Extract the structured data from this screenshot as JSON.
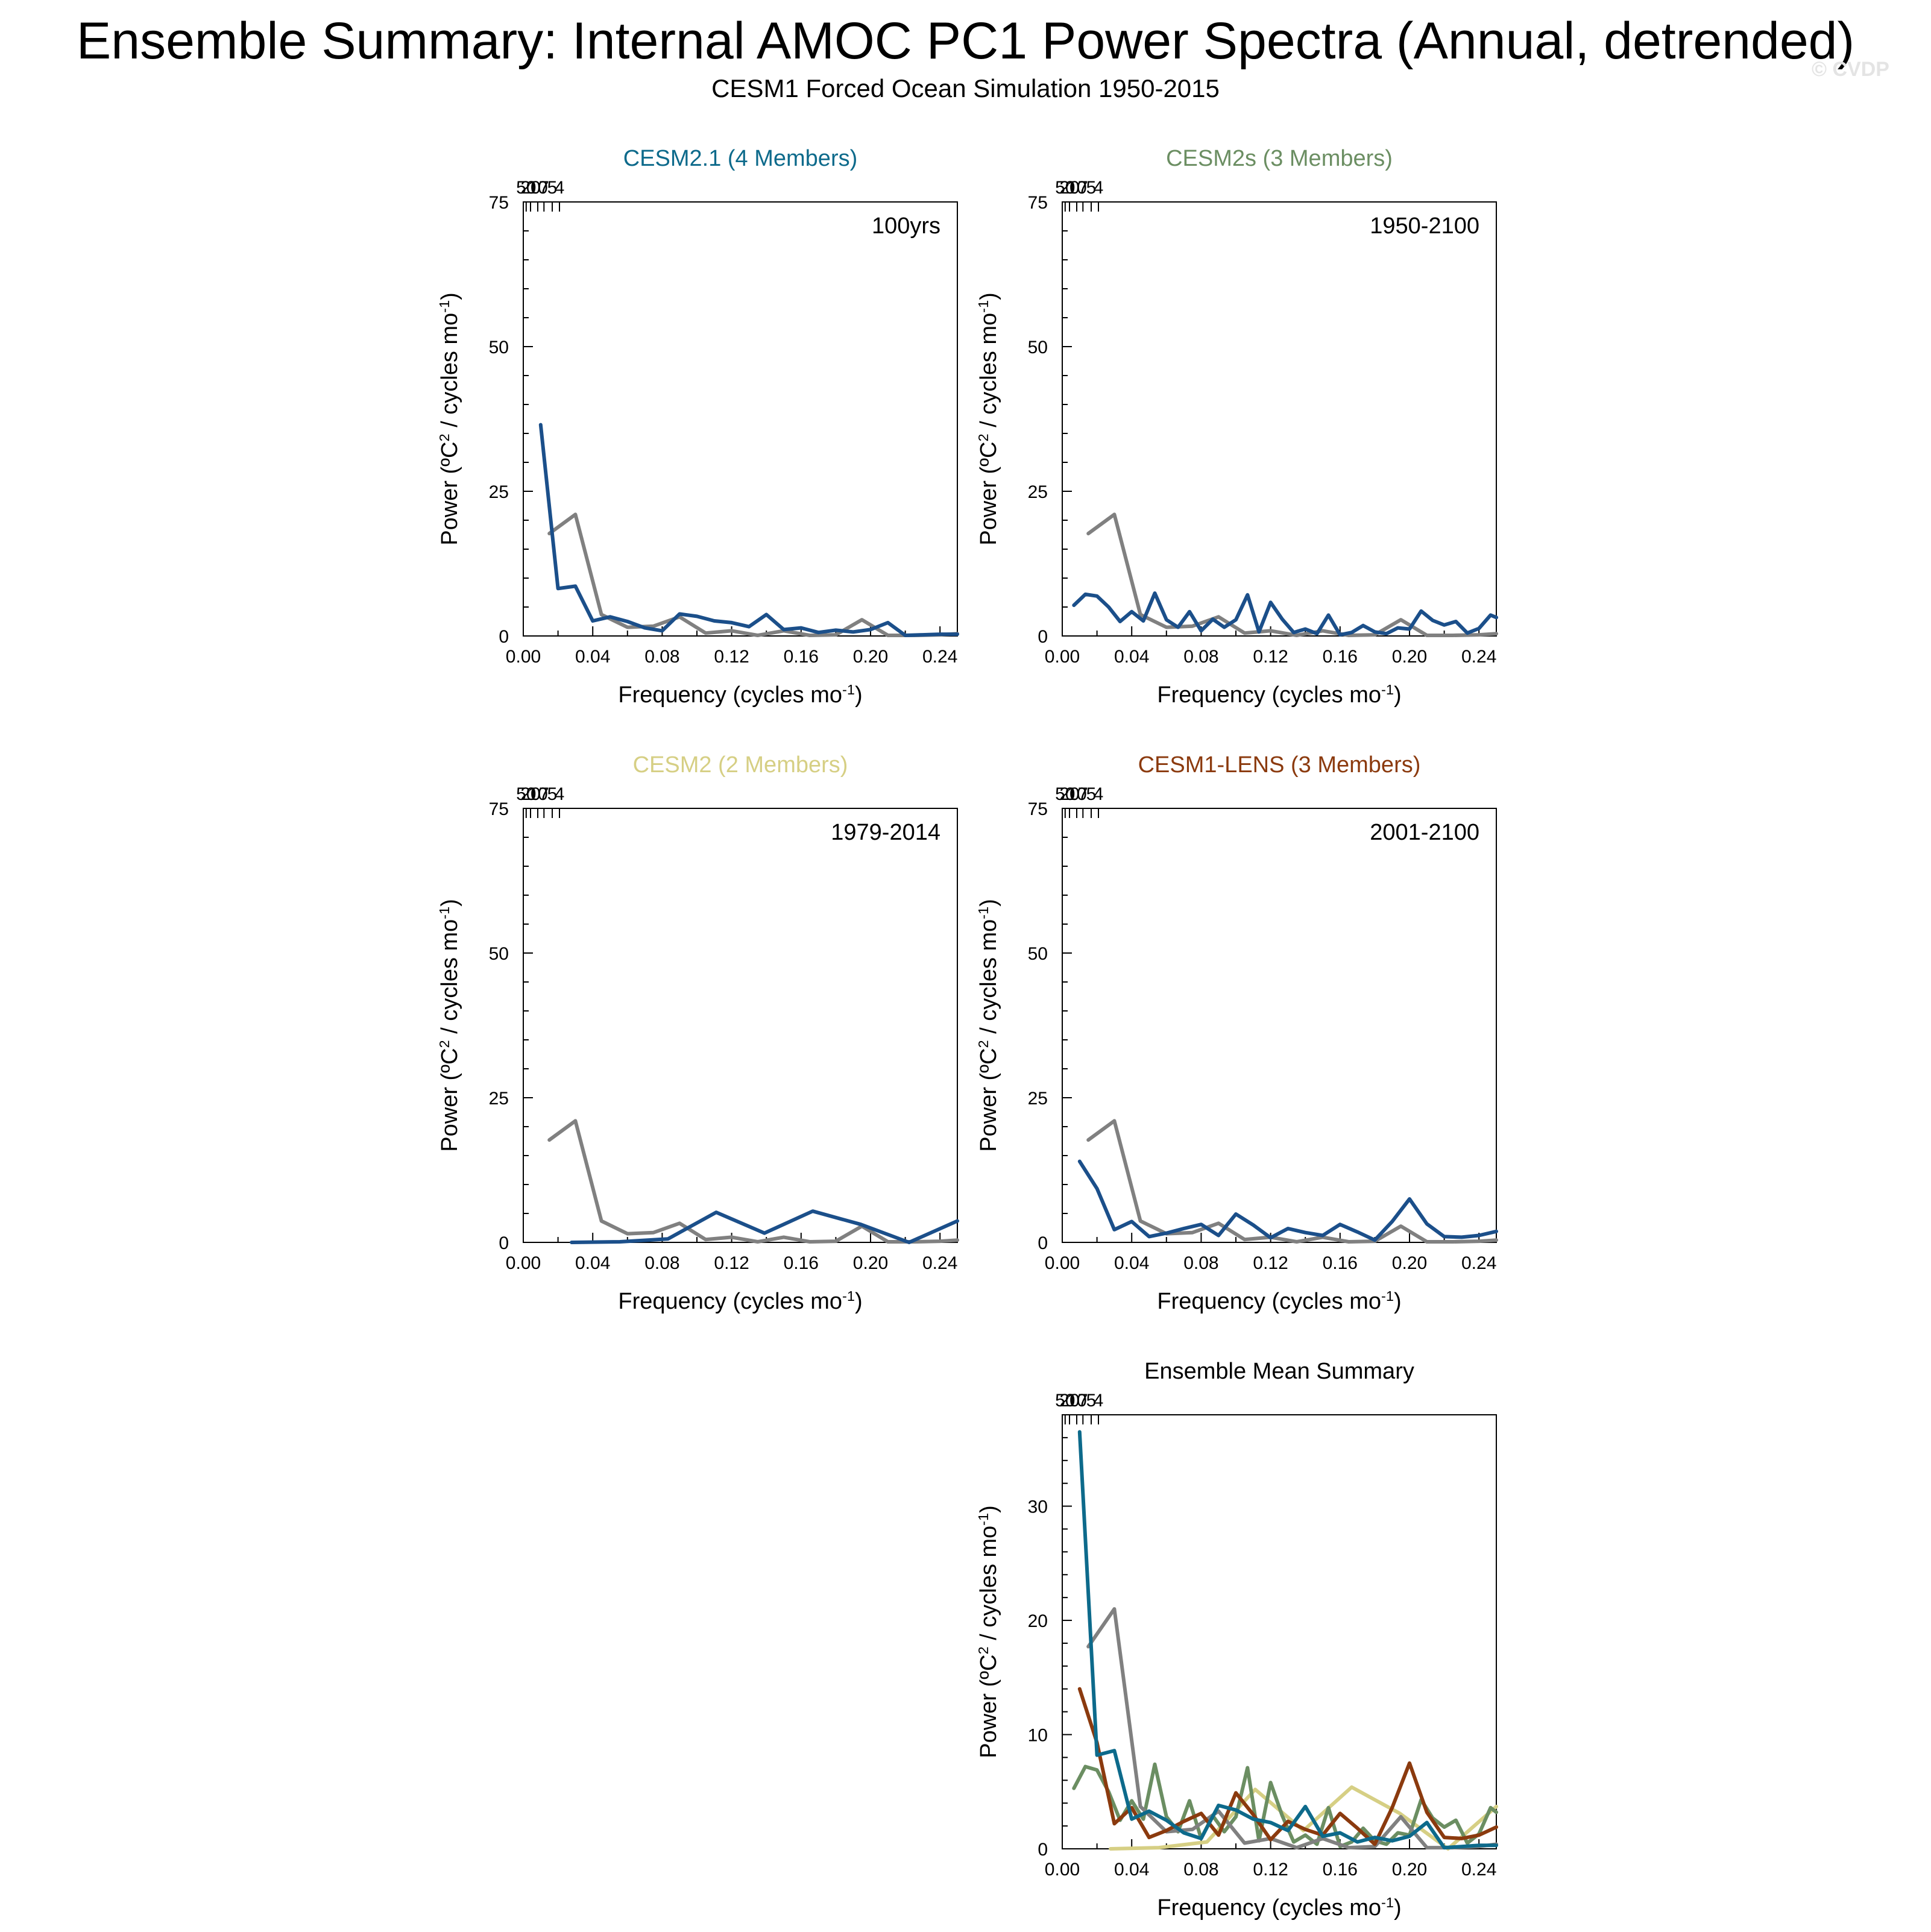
{
  "title": "Ensemble Summary: Internal AMOC PC1 Power Spectra (Annual, detrended)",
  "subtitle": "CESM1 Forced Ocean Simulation 1950-2015",
  "watermark": "© CVDP",
  "colors": {
    "reference": "#808080",
    "member": "#1b4f8a",
    "CESM2.1": "#0d6a8b",
    "CESM2s": "#6b8e62",
    "CESM2": "#d6cf84",
    "CESM1-LENS": "#8b3a0e"
  },
  "chart_data": [
    {
      "type": "line",
      "title": "CESM2.1 (4 Members)",
      "title_color": "#0d6a8b",
      "annotation": "100yrs",
      "xlabel": "Frequency (cycles mo⁻¹)",
      "ylabel": "Power (ºC² / cycles mo⁻¹)",
      "xlim": [
        0,
        0.25
      ],
      "ylim": [
        0,
        75
      ],
      "xticks": [
        "0.00",
        "0.04",
        "0.08",
        "0.12",
        "0.16",
        "0.20",
        "0.24"
      ],
      "yticks": [
        "0",
        "25",
        "50",
        "75"
      ],
      "top_ticks": [
        "50",
        "20",
        "10",
        "7",
        "5",
        "4"
      ],
      "series": [
        {
          "role": "reference",
          "x": [
            0.015,
            0.03,
            0.045,
            0.06,
            0.075,
            0.09,
            0.105,
            0.12,
            0.135,
            0.15,
            0.165,
            0.18,
            0.195,
            0.21,
            0.225,
            0.24,
            0.25
          ],
          "y": [
            17.7,
            21.0,
            3.7,
            1.5,
            1.7,
            3.3,
            0.5,
            0.9,
            0.1,
            0.9,
            0.1,
            0.2,
            2.8,
            0.1,
            0.1,
            0.2,
            0.4
          ]
        },
        {
          "role": "member",
          "x": [
            0.01,
            0.02,
            0.03,
            0.04,
            0.05,
            0.06,
            0.07,
            0.08,
            0.09,
            0.1,
            0.11,
            0.12,
            0.13,
            0.14,
            0.15,
            0.16,
            0.17,
            0.18,
            0.19,
            0.2,
            0.21,
            0.22,
            0.23,
            0.24,
            0.25
          ],
          "y": [
            36.5,
            8.2,
            8.6,
            2.6,
            3.3,
            2.5,
            1.4,
            0.9,
            3.8,
            3.4,
            2.6,
            2.3,
            1.6,
            3.7,
            1.1,
            1.4,
            0.6,
            1.0,
            0.7,
            1.1,
            2.3,
            0.1,
            0.2,
            0.3,
            0.3
          ]
        }
      ]
    },
    {
      "type": "line",
      "title": "CESM2s (3 Members)",
      "title_color": "#6b8e62",
      "annotation": "1950-2100",
      "xlabel": "Frequency (cycles mo⁻¹)",
      "ylabel": "Power (ºC² / cycles mo⁻¹)",
      "xlim": [
        0,
        0.25
      ],
      "ylim": [
        0,
        75
      ],
      "xticks": [
        "0.00",
        "0.04",
        "0.08",
        "0.12",
        "0.16",
        "0.20",
        "0.24"
      ],
      "yticks": [
        "0",
        "25",
        "50",
        "75"
      ],
      "top_ticks": [
        "50",
        "20",
        "10",
        "7",
        "5",
        "4"
      ],
      "series": [
        {
          "role": "reference",
          "x": [
            0.015,
            0.03,
            0.045,
            0.06,
            0.075,
            0.09,
            0.105,
            0.12,
            0.135,
            0.15,
            0.165,
            0.18,
            0.195,
            0.21,
            0.225,
            0.24,
            0.25
          ],
          "y": [
            17.7,
            21.0,
            3.7,
            1.5,
            1.7,
            3.3,
            0.5,
            0.9,
            0.1,
            0.9,
            0.1,
            0.2,
            2.8,
            0.1,
            0.1,
            0.2,
            0.4
          ]
        },
        {
          "role": "member",
          "x": [
            0.0067,
            0.0133,
            0.02,
            0.0267,
            0.0333,
            0.04,
            0.0467,
            0.0533,
            0.06,
            0.0667,
            0.0733,
            0.08,
            0.0867,
            0.0933,
            0.1,
            0.1067,
            0.1133,
            0.12,
            0.1267,
            0.1333,
            0.14,
            0.1467,
            0.1533,
            0.16,
            0.1667,
            0.1733,
            0.18,
            0.1867,
            0.1933,
            0.2,
            0.2067,
            0.2133,
            0.22,
            0.2267,
            0.2333,
            0.24,
            0.2467,
            0.25
          ],
          "y": [
            5.3,
            7.2,
            6.9,
            5.0,
            2.5,
            4.2,
            2.6,
            7.4,
            2.8,
            1.5,
            4.2,
            0.9,
            2.9,
            1.5,
            2.8,
            7.1,
            0.7,
            5.8,
            2.9,
            0.6,
            1.2,
            0.4,
            3.6,
            0.2,
            0.6,
            1.8,
            0.7,
            0.4,
            1.4,
            1.2,
            4.3,
            2.7,
            1.9,
            2.5,
            0.5,
            1.3,
            3.6,
            3.2
          ]
        }
      ]
    },
    {
      "type": "line",
      "title": "CESM2 (2 Members)",
      "title_color": "#d6cf84",
      "annotation": "1979-2014",
      "xlabel": "Frequency (cycles mo⁻¹)",
      "ylabel": "Power (ºC² / cycles mo⁻¹)",
      "xlim": [
        0,
        0.25
      ],
      "ylim": [
        0,
        75
      ],
      "xticks": [
        "0.00",
        "0.04",
        "0.08",
        "0.12",
        "0.16",
        "0.20",
        "0.24"
      ],
      "yticks": [
        "0",
        "25",
        "50",
        "75"
      ],
      "top_ticks": [
        "50",
        "20",
        "10",
        "7",
        "5",
        "4"
      ],
      "series": [
        {
          "role": "reference",
          "x": [
            0.015,
            0.03,
            0.045,
            0.06,
            0.075,
            0.09,
            0.105,
            0.12,
            0.135,
            0.15,
            0.165,
            0.18,
            0.195,
            0.21,
            0.225,
            0.24,
            0.25
          ],
          "y": [
            17.7,
            21.0,
            3.7,
            1.5,
            1.7,
            3.3,
            0.5,
            0.9,
            0.1,
            0.9,
            0.1,
            0.2,
            2.8,
            0.1,
            0.1,
            0.2,
            0.4
          ]
        },
        {
          "role": "member",
          "x": [
            0.0278,
            0.0556,
            0.0833,
            0.1111,
            0.1389,
            0.1667,
            0.1944,
            0.2222,
            0.25
          ],
          "y": [
            0.0,
            0.1,
            0.6,
            5.2,
            1.6,
            5.4,
            3.1,
            0.0,
            3.7
          ]
        }
      ]
    },
    {
      "type": "line",
      "title": "CESM1-LENS (3 Members)",
      "title_color": "#8b3a0e",
      "annotation": "2001-2100",
      "xlabel": "Frequency (cycles mo⁻¹)",
      "ylabel": "Power (ºC² / cycles mo⁻¹)",
      "xlim": [
        0,
        0.25
      ],
      "ylim": [
        0,
        75
      ],
      "xticks": [
        "0.00",
        "0.04",
        "0.08",
        "0.12",
        "0.16",
        "0.20",
        "0.24"
      ],
      "yticks": [
        "0",
        "25",
        "50",
        "75"
      ],
      "top_ticks": [
        "50",
        "20",
        "10",
        "7",
        "5",
        "4"
      ],
      "series": [
        {
          "role": "reference",
          "x": [
            0.015,
            0.03,
            0.045,
            0.06,
            0.075,
            0.09,
            0.105,
            0.12,
            0.135,
            0.15,
            0.165,
            0.18,
            0.195,
            0.21,
            0.225,
            0.24,
            0.25
          ],
          "y": [
            17.7,
            21.0,
            3.7,
            1.5,
            1.7,
            3.3,
            0.5,
            0.9,
            0.1,
            0.9,
            0.1,
            0.2,
            2.8,
            0.1,
            0.1,
            0.2,
            0.4
          ]
        },
        {
          "role": "member",
          "x": [
            0.01,
            0.02,
            0.03,
            0.04,
            0.05,
            0.06,
            0.07,
            0.08,
            0.09,
            0.1,
            0.11,
            0.12,
            0.13,
            0.14,
            0.15,
            0.16,
            0.17,
            0.18,
            0.19,
            0.2,
            0.21,
            0.22,
            0.23,
            0.24,
            0.25
          ],
          "y": [
            14.0,
            9.3,
            2.2,
            3.6,
            1.0,
            1.6,
            2.4,
            3.1,
            1.2,
            4.9,
            3.0,
            0.8,
            2.4,
            1.7,
            1.2,
            3.1,
            1.8,
            0.4,
            3.6,
            7.5,
            3.2,
            1.0,
            0.9,
            1.2,
            1.9
          ]
        }
      ]
    },
    {
      "type": "line",
      "title": "Ensemble Mean Summary",
      "title_color": "#000000",
      "annotation": "",
      "xlabel": "Frequency (cycles mo⁻¹)",
      "ylabel": "Power (ºC² / cycles mo⁻¹)",
      "xlim": [
        0,
        0.25
      ],
      "ylim": [
        0,
        38
      ],
      "xticks": [
        "0.00",
        "0.04",
        "0.08",
        "0.12",
        "0.16",
        "0.20",
        "0.24"
      ],
      "yticks": [
        "0",
        "10",
        "20",
        "30"
      ],
      "top_ticks": [
        "50",
        "20",
        "10",
        "7",
        "5",
        "4"
      ],
      "series": [
        {
          "role": "CESM2",
          "x": [
            0.0278,
            0.0556,
            0.0833,
            0.1111,
            0.1389,
            0.1667,
            0.1944,
            0.2222,
            0.25
          ],
          "y": [
            0.0,
            0.1,
            0.6,
            5.2,
            1.6,
            5.4,
            3.1,
            0.0,
            3.7
          ]
        },
        {
          "role": "CESM2s",
          "x": [
            0.0067,
            0.0133,
            0.02,
            0.0267,
            0.0333,
            0.04,
            0.0467,
            0.0533,
            0.06,
            0.0667,
            0.0733,
            0.08,
            0.0867,
            0.0933,
            0.1,
            0.1067,
            0.1133,
            0.12,
            0.1267,
            0.1333,
            0.14,
            0.1467,
            0.1533,
            0.16,
            0.1667,
            0.1733,
            0.18,
            0.1867,
            0.1933,
            0.2,
            0.2067,
            0.2133,
            0.22,
            0.2267,
            0.2333,
            0.24,
            0.2467,
            0.25
          ],
          "y": [
            5.3,
            7.2,
            6.9,
            5.0,
            2.5,
            4.2,
            2.6,
            7.4,
            2.8,
            1.5,
            4.2,
            0.9,
            2.9,
            1.5,
            2.8,
            7.1,
            0.7,
            5.8,
            2.9,
            0.6,
            1.2,
            0.4,
            3.6,
            0.2,
            0.6,
            1.8,
            0.7,
            0.4,
            1.4,
            1.2,
            4.3,
            2.7,
            1.9,
            2.5,
            0.5,
            1.3,
            3.6,
            3.2
          ]
        },
        {
          "role": "reference",
          "x": [
            0.015,
            0.03,
            0.045,
            0.06,
            0.075,
            0.09,
            0.105,
            0.12,
            0.135,
            0.15,
            0.165,
            0.18,
            0.195,
            0.21,
            0.225,
            0.24,
            0.25
          ],
          "y": [
            17.7,
            21.0,
            3.7,
            1.5,
            1.7,
            3.3,
            0.5,
            0.9,
            0.1,
            0.9,
            0.1,
            0.2,
            2.8,
            0.1,
            0.1,
            0.2,
            0.4
          ]
        },
        {
          "role": "CESM1-LENS",
          "x": [
            0.01,
            0.02,
            0.03,
            0.04,
            0.05,
            0.06,
            0.07,
            0.08,
            0.09,
            0.1,
            0.11,
            0.12,
            0.13,
            0.14,
            0.15,
            0.16,
            0.17,
            0.18,
            0.19,
            0.2,
            0.21,
            0.22,
            0.23,
            0.24,
            0.25
          ],
          "y": [
            14.0,
            9.3,
            2.2,
            3.6,
            1.0,
            1.6,
            2.4,
            3.1,
            1.2,
            4.9,
            3.0,
            0.8,
            2.4,
            1.7,
            1.2,
            3.1,
            1.8,
            0.4,
            3.6,
            7.5,
            3.2,
            1.0,
            0.9,
            1.2,
            1.9
          ]
        },
        {
          "role": "CESM2.1",
          "x": [
            0.01,
            0.02,
            0.03,
            0.04,
            0.05,
            0.06,
            0.07,
            0.08,
            0.09,
            0.1,
            0.11,
            0.12,
            0.13,
            0.14,
            0.15,
            0.16,
            0.17,
            0.18,
            0.19,
            0.2,
            0.21,
            0.22,
            0.23,
            0.24,
            0.25
          ],
          "y": [
            36.5,
            8.2,
            8.6,
            2.6,
            3.3,
            2.5,
            1.4,
            0.9,
            3.8,
            3.4,
            2.6,
            2.3,
            1.6,
            3.7,
            1.1,
            1.4,
            0.6,
            1.0,
            0.7,
            1.1,
            2.3,
            0.1,
            0.2,
            0.3,
            0.3
          ]
        }
      ]
    }
  ]
}
